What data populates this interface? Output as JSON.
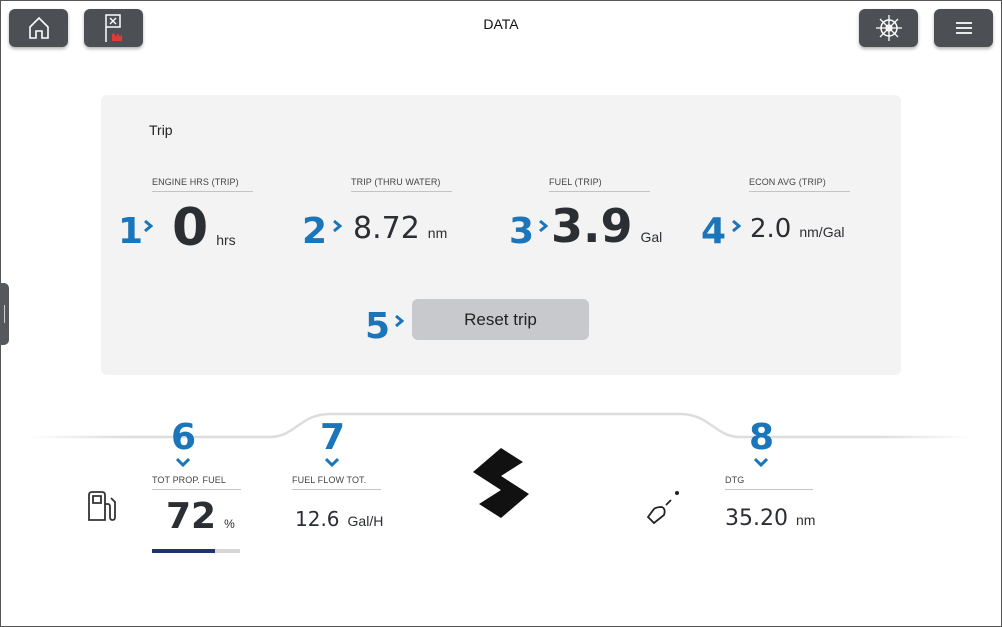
{
  "header": {
    "title": "DATA",
    "buttons": [
      "home-icon",
      "waypoint-flag-icon",
      "helm-wheel-icon",
      "menu-icon"
    ]
  },
  "trip": {
    "title": "Trip",
    "fields": [
      {
        "label": "ENGINE HRS (TRIP)",
        "value": "0",
        "unit": "hrs",
        "callout": "1"
      },
      {
        "label": "TRIP (THRU WATER)",
        "value": "8.72",
        "unit": "nm",
        "callout": "2"
      },
      {
        "label": "FUEL (TRIP)",
        "value": "3.9",
        "unit": "Gal",
        "callout": "3"
      },
      {
        "label": "ECON AVG (TRIP)",
        "value": "2.0",
        "unit": "nm/Gal",
        "callout": "4"
      }
    ],
    "reset_label": "Reset trip",
    "reset_callout": "5"
  },
  "bottom": {
    "fuel": {
      "label": "TOT PROP. FUEL",
      "value": "72",
      "unit": "%",
      "level_percent": 72,
      "callout": "6"
    },
    "flow": {
      "label": "FUEL FLOW TOT.",
      "value": "12.6",
      "unit": "Gal/H",
      "callout": "7"
    },
    "dtg": {
      "label": "DTG",
      "value": "35.20",
      "unit": "nm",
      "callout": "8"
    }
  },
  "colors": {
    "callout": "#1a75bb",
    "button": "#4c4f54",
    "fuel_bar": "#1f3370"
  }
}
